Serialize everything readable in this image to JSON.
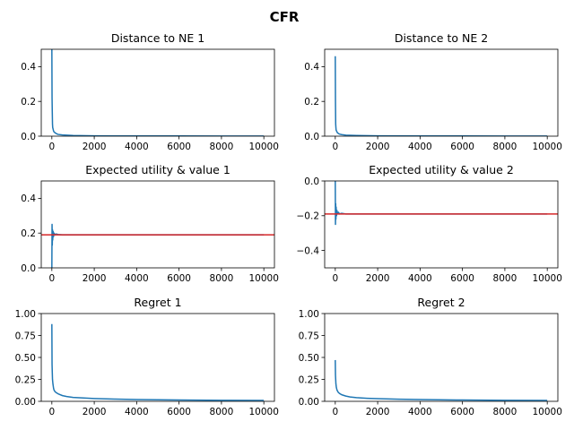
{
  "figure": {
    "title": "CFR"
  },
  "colors": {
    "series": "#1f77b4",
    "reference": "#d62728",
    "axes": "#000000"
  },
  "chart_data": [
    {
      "type": "line",
      "title": "Distance to NE 1",
      "xlim": [
        -500,
        10500
      ],
      "ylim": [
        0,
        0.5
      ],
      "xticks": [
        0,
        2000,
        4000,
        6000,
        8000,
        10000
      ],
      "xtick_labels": [
        "0",
        "2000",
        "4000",
        "6000",
        "8000",
        "10000"
      ],
      "yticks": [
        0,
        0.2,
        0.4
      ],
      "ytick_labels": [
        "0.0",
        "0.2",
        "0.4"
      ],
      "series": [
        {
          "x": [
            0,
            10,
            20,
            30,
            40,
            60,
            80,
            100,
            150,
            200,
            300,
            500,
            1000,
            2000,
            4000,
            6000,
            8000,
            10000
          ],
          "y": [
            0.5,
            0.22,
            0.14,
            0.07,
            0.05,
            0.04,
            0.03,
            0.025,
            0.02,
            0.015,
            0.01,
            0.007,
            0.004,
            0.002,
            0.001,
            0.001,
            0.0005,
            0.0005
          ]
        }
      ],
      "hline": null
    },
    {
      "type": "line",
      "title": "Distance to NE 2",
      "xlim": [
        -500,
        10500
      ],
      "ylim": [
        0,
        0.5
      ],
      "xticks": [
        0,
        2000,
        4000,
        6000,
        8000,
        10000
      ],
      "xtick_labels": [
        "0",
        "2000",
        "4000",
        "6000",
        "8000",
        "10000"
      ],
      "yticks": [
        0,
        0.2,
        0.4
      ],
      "ytick_labels": [
        "0.0",
        "0.2",
        "0.4"
      ],
      "series": [
        {
          "x": [
            0,
            10,
            20,
            30,
            40,
            60,
            80,
            100,
            150,
            200,
            300,
            500,
            1000,
            2000,
            4000,
            6000,
            8000,
            10000
          ],
          "y": [
            0.46,
            0.2,
            0.07,
            0.05,
            0.035,
            0.03,
            0.025,
            0.02,
            0.015,
            0.012,
            0.009,
            0.006,
            0.004,
            0.002,
            0.001,
            0.001,
            0.0005,
            0.0005
          ]
        }
      ],
      "hline": null
    },
    {
      "type": "line",
      "title": "Expected utility & value 1",
      "xlim": [
        -500,
        10500
      ],
      "ylim": [
        0,
        0.5
      ],
      "xticks": [
        0,
        2000,
        4000,
        6000,
        8000,
        10000
      ],
      "xtick_labels": [
        "0",
        "2000",
        "4000",
        "6000",
        "8000",
        "10000"
      ],
      "yticks": [
        0,
        0.2,
        0.4
      ],
      "ytick_labels": [
        "0.0",
        "0.2",
        "0.4"
      ],
      "series": [
        {
          "x": [
            0,
            10,
            20,
            30,
            40,
            60,
            80,
            100,
            150,
            200,
            300,
            500,
            1000,
            2000,
            4000,
            6000,
            8000,
            10000
          ],
          "y": [
            0.0,
            0.25,
            0.13,
            0.22,
            0.16,
            0.21,
            0.18,
            0.2,
            0.19,
            0.195,
            0.192,
            0.19,
            0.19,
            0.19,
            0.19,
            0.19,
            0.19,
            0.19
          ]
        }
      ],
      "hline": 0.19
    },
    {
      "type": "line",
      "title": "Expected utility & value 2",
      "xlim": [
        -500,
        10500
      ],
      "ylim": [
        -0.5,
        0
      ],
      "xticks": [
        0,
        2000,
        4000,
        6000,
        8000,
        10000
      ],
      "xtick_labels": [
        "0",
        "2000",
        "4000",
        "6000",
        "8000",
        "10000"
      ],
      "yticks": [
        -0.4,
        -0.2,
        0
      ],
      "ytick_labels": [
        "−0.4",
        "−0.2",
        "0.0"
      ],
      "series": [
        {
          "x": [
            0,
            10,
            20,
            30,
            40,
            60,
            80,
            100,
            150,
            200,
            300,
            500,
            1000,
            2000,
            4000,
            6000,
            8000,
            10000
          ],
          "y": [
            0.0,
            -0.25,
            -0.13,
            -0.22,
            -0.15,
            -0.2,
            -0.17,
            -0.185,
            -0.18,
            -0.19,
            -0.186,
            -0.19,
            -0.19,
            -0.19,
            -0.19,
            -0.19,
            -0.19,
            -0.19
          ]
        }
      ],
      "hline": -0.19
    },
    {
      "type": "line",
      "title": "Regret 1",
      "xlim": [
        -500,
        10500
      ],
      "ylim": [
        0,
        1.0
      ],
      "xticks": [
        0,
        2000,
        4000,
        6000,
        8000,
        10000
      ],
      "xtick_labels": [
        "0",
        "2000",
        "4000",
        "6000",
        "8000",
        "10000"
      ],
      "yticks": [
        0,
        0.25,
        0.5,
        0.75,
        1.0
      ],
      "ytick_labels": [
        "0.00",
        "0.25",
        "0.50",
        "0.75",
        "1.00"
      ],
      "series": [
        {
          "x": [
            0,
            10,
            20,
            30,
            50,
            80,
            100,
            150,
            200,
            300,
            500,
            700,
            1000,
            1500,
            2000,
            3000,
            4000,
            6000,
            8000,
            10000
          ],
          "y": [
            0.88,
            0.42,
            0.33,
            0.25,
            0.2,
            0.15,
            0.13,
            0.11,
            0.1,
            0.085,
            0.065,
            0.055,
            0.045,
            0.038,
            0.032,
            0.025,
            0.02,
            0.015,
            0.012,
            0.01
          ]
        }
      ],
      "hline": null
    },
    {
      "type": "line",
      "title": "Regret 2",
      "xlim": [
        -500,
        10500
      ],
      "ylim": [
        0,
        1.0
      ],
      "xticks": [
        0,
        2000,
        4000,
        6000,
        8000,
        10000
      ],
      "xtick_labels": [
        "0",
        "2000",
        "4000",
        "6000",
        "8000",
        "10000"
      ],
      "yticks": [
        0,
        0.25,
        0.5,
        0.75,
        1.0
      ],
      "ytick_labels": [
        "0.00",
        "0.25",
        "0.50",
        "0.75",
        "1.00"
      ],
      "series": [
        {
          "x": [
            0,
            10,
            20,
            30,
            50,
            80,
            100,
            150,
            200,
            300,
            500,
            700,
            1000,
            1500,
            2000,
            3000,
            4000,
            6000,
            8000,
            10000
          ],
          "y": [
            0.47,
            0.3,
            0.25,
            0.2,
            0.16,
            0.13,
            0.12,
            0.1,
            0.09,
            0.075,
            0.06,
            0.05,
            0.042,
            0.035,
            0.03,
            0.024,
            0.02,
            0.015,
            0.012,
            0.01
          ]
        }
      ],
      "hline": null
    }
  ]
}
